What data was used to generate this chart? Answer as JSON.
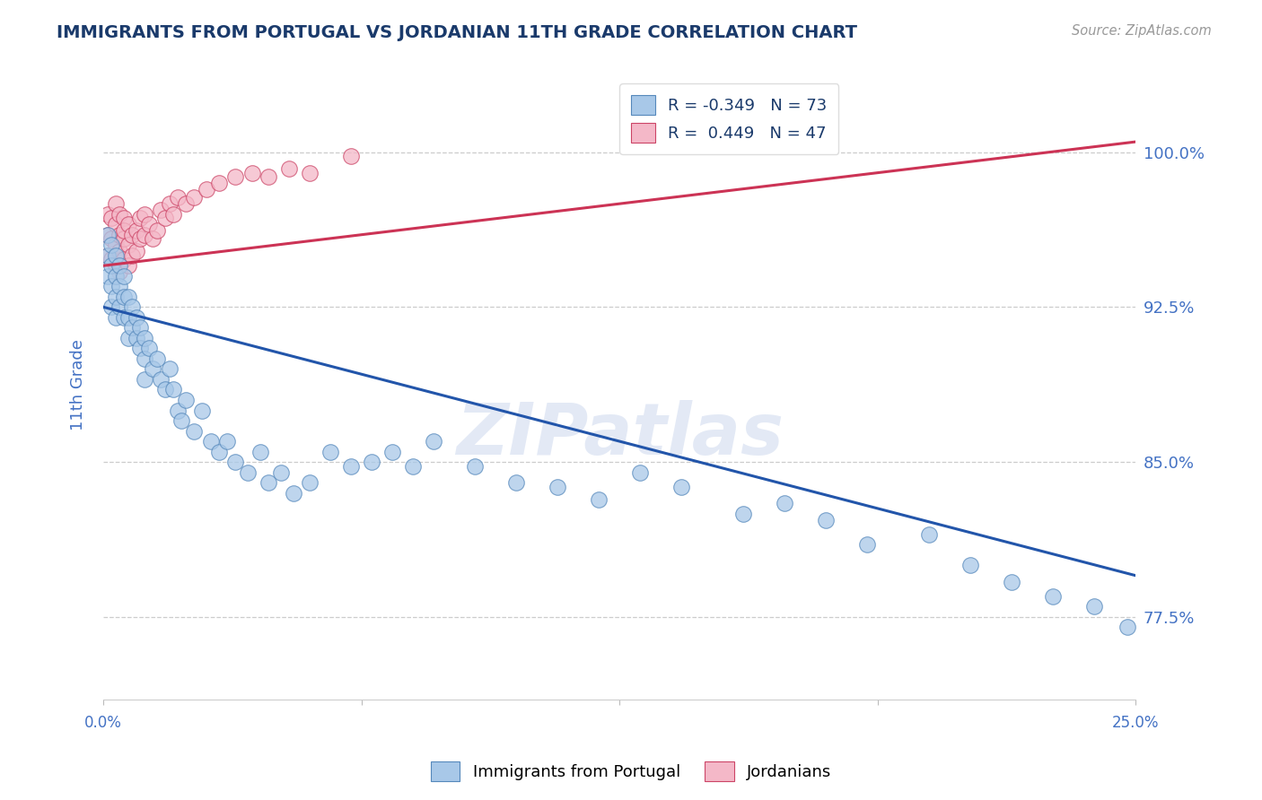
{
  "title": "IMMIGRANTS FROM PORTUGAL VS JORDANIAN 11TH GRADE CORRELATION CHART",
  "source": "Source: ZipAtlas.com",
  "ylabel": "11th Grade",
  "y_ticks": [
    0.775,
    0.85,
    0.925,
    1.0
  ],
  "y_tick_labels": [
    "77.5%",
    "85.0%",
    "92.5%",
    "100.0%"
  ],
  "x_range": [
    0.0,
    0.25
  ],
  "y_range": [
    0.735,
    1.04
  ],
  "legend_r1": "R = -0.349",
  "legend_n1": "N = 73",
  "legend_r2": "R =  0.449",
  "legend_n2": "N = 47",
  "blue_color": "#a8c8e8",
  "pink_color": "#f4b8c8",
  "blue_edge_color": "#5588bb",
  "pink_edge_color": "#cc4466",
  "blue_line_color": "#2255aa",
  "pink_line_color": "#cc3355",
  "title_color": "#1a3a6b",
  "axis_color": "#4472c4",
  "watermark": "ZIPatlas",
  "blue_line_x0": 0.0,
  "blue_line_y0": 0.925,
  "blue_line_x1": 0.25,
  "blue_line_y1": 0.795,
  "pink_line_x0": 0.0,
  "pink_line_y0": 0.945,
  "pink_line_x1": 0.25,
  "pink_line_y1": 1.005,
  "blue_x": [
    0.001,
    0.001,
    0.001,
    0.002,
    0.002,
    0.002,
    0.002,
    0.003,
    0.003,
    0.003,
    0.003,
    0.004,
    0.004,
    0.004,
    0.005,
    0.005,
    0.005,
    0.006,
    0.006,
    0.006,
    0.007,
    0.007,
    0.008,
    0.008,
    0.009,
    0.009,
    0.01,
    0.01,
    0.01,
    0.011,
    0.012,
    0.013,
    0.014,
    0.015,
    0.016,
    0.017,
    0.018,
    0.019,
    0.02,
    0.022,
    0.024,
    0.026,
    0.028,
    0.03,
    0.032,
    0.035,
    0.038,
    0.04,
    0.043,
    0.046,
    0.05,
    0.055,
    0.06,
    0.065,
    0.07,
    0.075,
    0.08,
    0.09,
    0.1,
    0.11,
    0.12,
    0.13,
    0.14,
    0.155,
    0.165,
    0.175,
    0.185,
    0.2,
    0.21,
    0.22,
    0.23,
    0.24,
    0.248
  ],
  "blue_y": [
    0.96,
    0.95,
    0.94,
    0.955,
    0.945,
    0.935,
    0.925,
    0.95,
    0.94,
    0.93,
    0.92,
    0.945,
    0.935,
    0.925,
    0.94,
    0.93,
    0.92,
    0.93,
    0.92,
    0.91,
    0.925,
    0.915,
    0.92,
    0.91,
    0.915,
    0.905,
    0.91,
    0.9,
    0.89,
    0.905,
    0.895,
    0.9,
    0.89,
    0.885,
    0.895,
    0.885,
    0.875,
    0.87,
    0.88,
    0.865,
    0.875,
    0.86,
    0.855,
    0.86,
    0.85,
    0.845,
    0.855,
    0.84,
    0.845,
    0.835,
    0.84,
    0.855,
    0.848,
    0.85,
    0.855,
    0.848,
    0.86,
    0.848,
    0.84,
    0.838,
    0.832,
    0.845,
    0.838,
    0.825,
    0.83,
    0.822,
    0.81,
    0.815,
    0.8,
    0.792,
    0.785,
    0.78,
    0.77
  ],
  "pink_x": [
    0.001,
    0.001,
    0.001,
    0.002,
    0.002,
    0.002,
    0.003,
    0.003,
    0.003,
    0.003,
    0.004,
    0.004,
    0.004,
    0.004,
    0.005,
    0.005,
    0.005,
    0.005,
    0.006,
    0.006,
    0.006,
    0.007,
    0.007,
    0.008,
    0.008,
    0.009,
    0.009,
    0.01,
    0.01,
    0.011,
    0.012,
    0.013,
    0.014,
    0.015,
    0.016,
    0.017,
    0.018,
    0.02,
    0.022,
    0.025,
    0.028,
    0.032,
    0.036,
    0.04,
    0.045,
    0.05,
    0.06
  ],
  "pink_y": [
    0.97,
    0.96,
    0.95,
    0.968,
    0.958,
    0.948,
    0.965,
    0.975,
    0.955,
    0.945,
    0.97,
    0.96,
    0.952,
    0.942,
    0.968,
    0.958,
    0.948,
    0.962,
    0.965,
    0.955,
    0.945,
    0.96,
    0.95,
    0.962,
    0.952,
    0.958,
    0.968,
    0.96,
    0.97,
    0.965,
    0.958,
    0.962,
    0.972,
    0.968,
    0.975,
    0.97,
    0.978,
    0.975,
    0.978,
    0.982,
    0.985,
    0.988,
    0.99,
    0.988,
    0.992,
    0.99,
    0.998
  ]
}
